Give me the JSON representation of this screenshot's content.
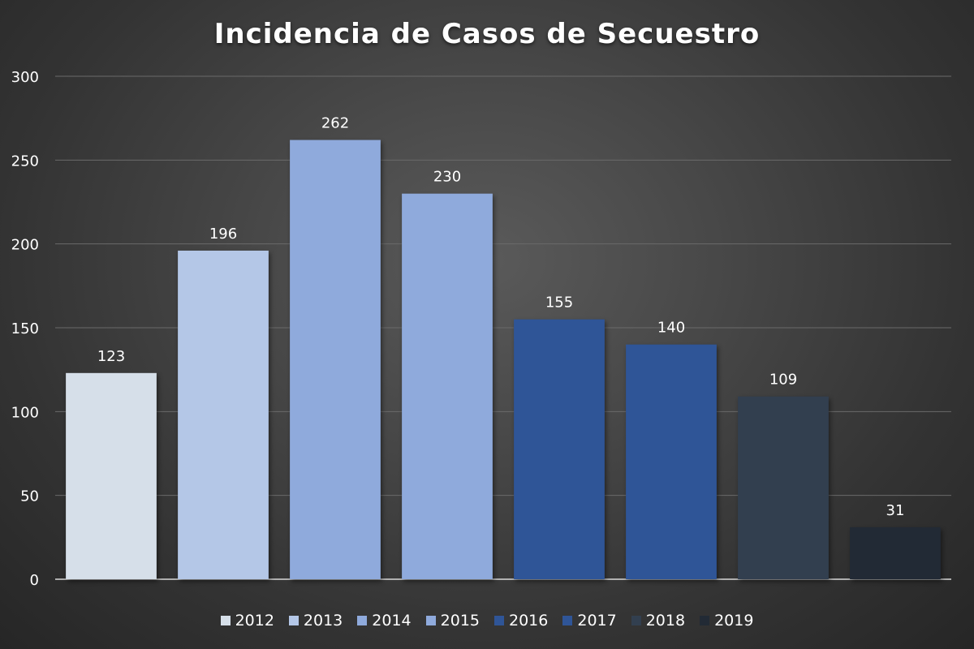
{
  "chart_data": {
    "type": "bar",
    "title": "Incidencia de Casos de Secuestro",
    "categories": [
      "2012",
      "2013",
      "2014",
      "2015",
      "2016",
      "2017",
      "2018",
      "2019"
    ],
    "values": [
      123,
      196,
      262,
      230,
      155,
      140,
      109,
      31
    ],
    "colors": [
      "#d6dfe9",
      "#b4c7e7",
      "#8faadc",
      "#8faadc",
      "#2f5597",
      "#2f5597",
      "#323f4f",
      "#222a35"
    ],
    "ylim": [
      0,
      300
    ],
    "yticks": [
      "0",
      "50",
      "100",
      "150",
      "200",
      "250",
      "300"
    ],
    "xlabel": "",
    "ylabel": "",
    "grid": true,
    "legend_position": "bottom",
    "data_labels": [
      "123",
      "196",
      "262",
      "230",
      "155",
      "140",
      "109",
      "31"
    ]
  },
  "colors": {
    "grid": "#6a6a6a",
    "axis": "#d9d9d9",
    "text": "#ffffff"
  }
}
